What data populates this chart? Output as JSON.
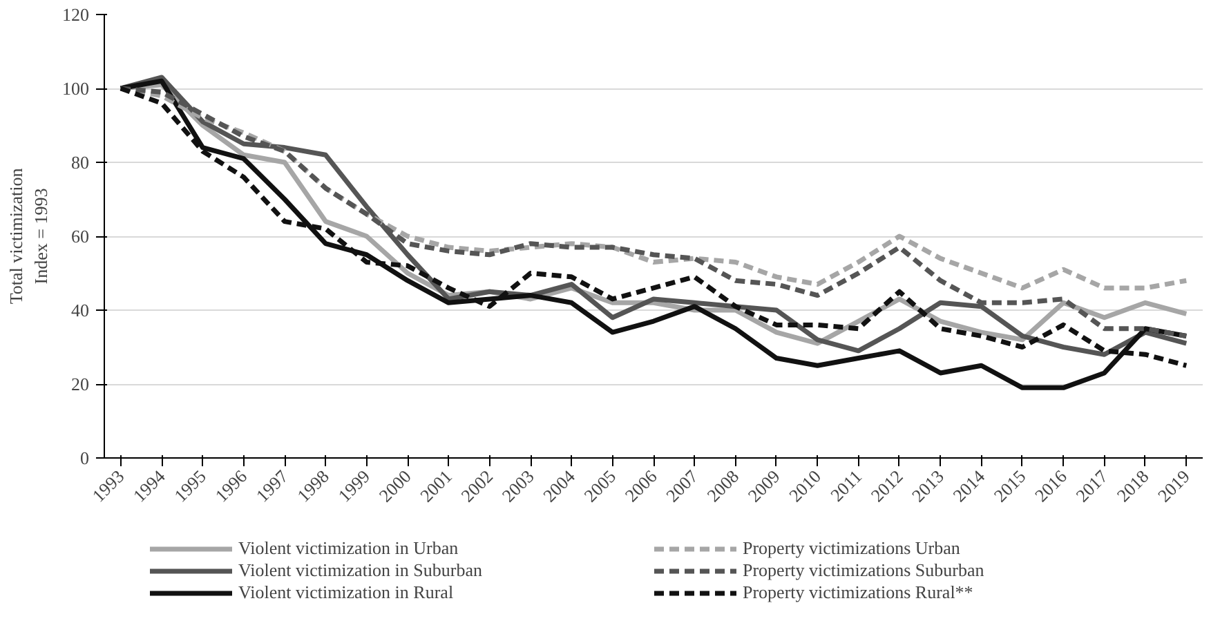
{
  "chart_data": {
    "type": "line",
    "ylabel": "Total victimization\nIndex = 1993",
    "x": [
      1993,
      1994,
      1995,
      1996,
      1997,
      1998,
      1999,
      2000,
      2001,
      2002,
      2003,
      2004,
      2005,
      2006,
      2007,
      2008,
      2009,
      2010,
      2011,
      2012,
      2013,
      2014,
      2015,
      2016,
      2017,
      2018,
      2019
    ],
    "xlim": [
      1992.6,
      2019.4
    ],
    "xticks": [
      1993,
      1994,
      1995,
      1996,
      1997,
      1998,
      1999,
      2000,
      2001,
      2002,
      2003,
      2004,
      2005,
      2006,
      2007,
      2008,
      2009,
      2010,
      2011,
      2012,
      2013,
      2014,
      2015,
      2016,
      2017,
      2018,
      2019
    ],
    "ylim": [
      0,
      120
    ],
    "yticks": [
      0,
      20,
      40,
      60,
      80,
      100,
      120
    ],
    "grid": "y",
    "legend": "bottom",
    "marker": "none",
    "series": [
      {
        "name": "Violent victimization in Urban",
        "color": "#a6a6a6",
        "line_style": "solid",
        "values": [
          100,
          101,
          90,
          82,
          80,
          64,
          60,
          50,
          44,
          45,
          43,
          46,
          42,
          42,
          40,
          40,
          34,
          31,
          37,
          43,
          37,
          34,
          32,
          42,
          38,
          42,
          39
        ]
      },
      {
        "name": "Violent victimization in Suburban",
        "color": "#555555",
        "line_style": "solid",
        "values": [
          100,
          103,
          91,
          85,
          84,
          82,
          68,
          55,
          43,
          45,
          44,
          47,
          38,
          43,
          42,
          41,
          40,
          32,
          29,
          35,
          42,
          41,
          33,
          30,
          28,
          34,
          31
        ]
      },
      {
        "name": "Violent victimization in Rural",
        "color": "#111111",
        "line_style": "solid",
        "values": [
          100,
          102,
          84,
          81,
          70,
          58,
          55,
          48,
          42,
          43,
          44,
          42,
          34,
          37,
          41,
          35,
          27,
          25,
          27,
          29,
          23,
          25,
          19,
          19,
          23,
          35,
          33
        ]
      },
      {
        "name": "Property victimizations Urban",
        "color": "#a6a6a6",
        "line_style": "dashed",
        "values": [
          100,
          98,
          92,
          88,
          83,
          73,
          66,
          60,
          57,
          56,
          57,
          58,
          57,
          53,
          54,
          53,
          49,
          47,
          53,
          60,
          54,
          50,
          46,
          51,
          46,
          46,
          48
        ]
      },
      {
        "name": "Property victimizations Suburban",
        "color": "#555555",
        "line_style": "dashed",
        "values": [
          100,
          99,
          93,
          87,
          83,
          73,
          66,
          58,
          56,
          55,
          58,
          57,
          57,
          55,
          54,
          48,
          47,
          44,
          50,
          57,
          48,
          42,
          42,
          43,
          35,
          35,
          33
        ]
      },
      {
        "name": "Property victimizations Rural**",
        "color": "#111111",
        "line_style": "dashed",
        "values": [
          100,
          96,
          83,
          76,
          64,
          62,
          53,
          52,
          46,
          41,
          50,
          49,
          43,
          46,
          49,
          41,
          36,
          36,
          35,
          45,
          35,
          33,
          30,
          36,
          29,
          28,
          25
        ]
      }
    ]
  }
}
